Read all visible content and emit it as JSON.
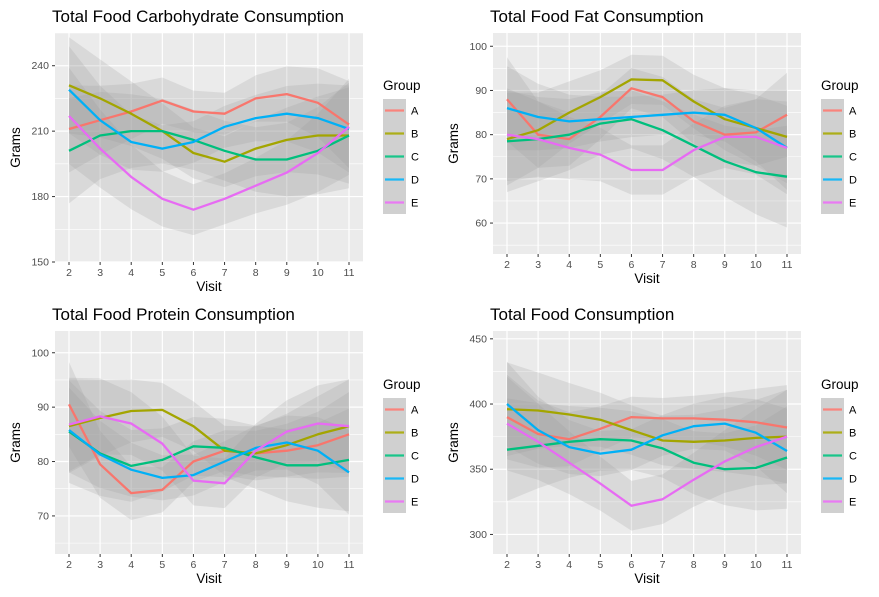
{
  "chart_data": [
    {
      "type": "line",
      "title": "Total Food Carbohydrate Consumption",
      "xlabel": "Visit",
      "ylabel": "Grams",
      "x": [
        2,
        3,
        4,
        5,
        6,
        7,
        8,
        9,
        10,
        11
      ],
      "ylim": [
        150,
        255
      ],
      "yticks": [
        150,
        180,
        210,
        240
      ],
      "grid": true,
      "legend": {
        "title": "Group",
        "position": "right"
      },
      "series": [
        {
          "name": "A",
          "color": "#F8766D",
          "values": [
            211,
            215,
            219,
            224,
            219,
            218,
            225,
            227,
            223,
            213
          ]
        },
        {
          "name": "B",
          "color": "#A3A500",
          "values": [
            231,
            225,
            218,
            210,
            200,
            196,
            202,
            206,
            208,
            208
          ]
        },
        {
          "name": "C",
          "color": "#00BF7D",
          "values": [
            201,
            208,
            210,
            210,
            206,
            201,
            197,
            197,
            201,
            208
          ]
        },
        {
          "name": "D",
          "color": "#00B0F6",
          "values": [
            229,
            215,
            205,
            202,
            205,
            212,
            216,
            218,
            216,
            211
          ]
        },
        {
          "name": "E",
          "color": "#E76BF3",
          "values": [
            217,
            202,
            189,
            179,
            174,
            179,
            185,
            191,
            200,
            212
          ]
        }
      ]
    },
    {
      "type": "line",
      "title": "Total Food Fat Consumption",
      "xlabel": "Visit",
      "ylabel": "Grams",
      "x": [
        2,
        3,
        4,
        5,
        6,
        7,
        8,
        9,
        10,
        11
      ],
      "ylim": [
        53,
        103
      ],
      "yticks": [
        60,
        70,
        80,
        90,
        100
      ],
      "grid": true,
      "legend": {
        "title": "Group",
        "position": "right"
      },
      "series": [
        {
          "name": "A",
          "color": "#F8766D",
          "values": [
            88,
            80,
            79,
            84,
            90.5,
            88.5,
            83,
            80,
            80.5,
            84.5
          ]
        },
        {
          "name": "B",
          "color": "#A3A500",
          "values": [
            79,
            81,
            85,
            88.5,
            92.5,
            92.3,
            87.5,
            83.5,
            81.5,
            79.5
          ]
        },
        {
          "name": "C",
          "color": "#00BF7D",
          "values": [
            78.5,
            79,
            80,
            82.5,
            83.5,
            81,
            77.5,
            74,
            71.5,
            70.5
          ]
        },
        {
          "name": "D",
          "color": "#00B0F6",
          "values": [
            86,
            84,
            83,
            83.5,
            84,
            84.5,
            85,
            84.5,
            81.5,
            77
          ]
        },
        {
          "name": "E",
          "color": "#E76BF3",
          "values": [
            80,
            79,
            77,
            75.5,
            72,
            72,
            76.5,
            79.5,
            79.5,
            77
          ]
        }
      ]
    },
    {
      "type": "line",
      "title": "Total Food Protein Consumption",
      "xlabel": "Visit",
      "ylabel": "Grams",
      "x": [
        2,
        3,
        4,
        5,
        6,
        7,
        8,
        9,
        10,
        11
      ],
      "ylim": [
        63,
        104
      ],
      "yticks": [
        70,
        80,
        90,
        100
      ],
      "grid": true,
      "legend": {
        "title": "Group",
        "position": "right"
      },
      "series": [
        {
          "name": "A",
          "color": "#F8766D",
          "values": [
            90.5,
            79.5,
            74.2,
            74.8,
            80,
            82,
            81.5,
            82,
            83,
            85
          ]
        },
        {
          "name": "B",
          "color": "#A3A500",
          "values": [
            86.5,
            88,
            89.3,
            89.5,
            86.5,
            82,
            81.5,
            83,
            85,
            86.5
          ]
        },
        {
          "name": "C",
          "color": "#00BF7D",
          "values": [
            85.5,
            81.5,
            79.2,
            80.3,
            82.8,
            82.5,
            80.8,
            79.3,
            79.3,
            80.3
          ]
        },
        {
          "name": "D",
          "color": "#00B0F6",
          "values": [
            85.8,
            81.3,
            78.5,
            77,
            77.5,
            80,
            82.5,
            83.5,
            82,
            78
          ]
        },
        {
          "name": "E",
          "color": "#E76BF3",
          "values": [
            86.8,
            88.3,
            87,
            83.3,
            76.5,
            76,
            82,
            85.5,
            87,
            86.5
          ]
        }
      ]
    },
    {
      "type": "line",
      "title": "Total Food Consumption",
      "xlabel": "Visit",
      "ylabel": "Grams",
      "x": [
        2,
        3,
        4,
        5,
        6,
        7,
        8,
        9,
        10,
        11
      ],
      "ylim": [
        285,
        456
      ],
      "yticks": [
        300,
        350,
        400,
        450
      ],
      "grid": true,
      "legend": {
        "title": "Group",
        "position": "right"
      },
      "series": [
        {
          "name": "A",
          "color": "#F8766D",
          "values": [
            390,
            377,
            373,
            381,
            390,
            389,
            389,
            388,
            386,
            382
          ]
        },
        {
          "name": "B",
          "color": "#A3A500",
          "values": [
            396,
            395,
            392,
            388,
            380,
            372,
            371,
            372,
            374,
            375
          ]
        },
        {
          "name": "C",
          "color": "#00BF7D",
          "values": [
            365,
            368,
            371,
            373,
            372,
            366,
            355,
            350,
            351,
            359
          ]
        },
        {
          "name": "D",
          "color": "#00B0F6",
          "values": [
            400,
            380,
            367,
            362,
            365,
            376,
            383,
            385,
            378,
            364
          ]
        },
        {
          "name": "E",
          "color": "#E76BF3",
          "values": [
            385,
            371,
            355,
            339,
            322,
            327,
            342,
            356,
            367,
            375
          ]
        }
      ]
    }
  ]
}
